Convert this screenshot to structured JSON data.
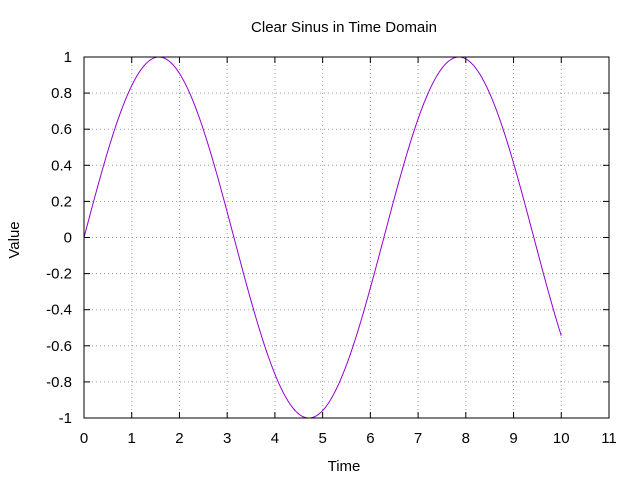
{
  "chart_data": {
    "type": "line",
    "title": "Clear Sinus in Time Domain",
    "xlabel": "Time",
    "ylabel": "Value",
    "xlim": [
      0,
      11
    ],
    "ylim": [
      -1,
      1
    ],
    "xticks": [
      "0",
      "1",
      "2",
      "3",
      "4",
      "5",
      "6",
      "7",
      "8",
      "9",
      "10",
      "11"
    ],
    "yticks": [
      "1",
      "0.8",
      "0.6",
      "0.4",
      "0.2",
      "0",
      "-0.2",
      "-0.4",
      "-0.6",
      "-0.8",
      "-1"
    ],
    "grid": true,
    "legend": "none",
    "series": [
      {
        "color": "#9400d3",
        "x": [
          0,
          0.25,
          0.5,
          0.75,
          1,
          1.25,
          1.5,
          1.5708,
          1.75,
          2,
          2.25,
          2.5,
          2.75,
          3,
          3.25,
          3.5,
          3.75,
          4,
          4.25,
          4.5,
          4.7124,
          4.75,
          5,
          5.25,
          5.5,
          5.75,
          6,
          6.25,
          6.5,
          6.75,
          7,
          7.25,
          7.5,
          7.75,
          7.854,
          8,
          8.25,
          8.5,
          8.75,
          9,
          9.25,
          9.5,
          9.75,
          10
        ],
        "y": [
          0,
          0.247,
          0.479,
          0.682,
          0.841,
          0.949,
          0.997,
          1,
          0.984,
          0.909,
          0.778,
          0.598,
          0.382,
          0.141,
          -0.108,
          -0.351,
          -0.572,
          -0.757,
          -0.895,
          -0.978,
          -1,
          -0.999,
          -0.959,
          -0.859,
          -0.706,
          -0.508,
          -0.279,
          -0.033,
          0.215,
          0.451,
          0.657,
          0.823,
          0.938,
          0.995,
          1,
          0.989,
          0.923,
          0.798,
          0.624,
          0.412,
          0.174,
          -0.075,
          -0.319,
          -0.544
        ]
      }
    ]
  }
}
